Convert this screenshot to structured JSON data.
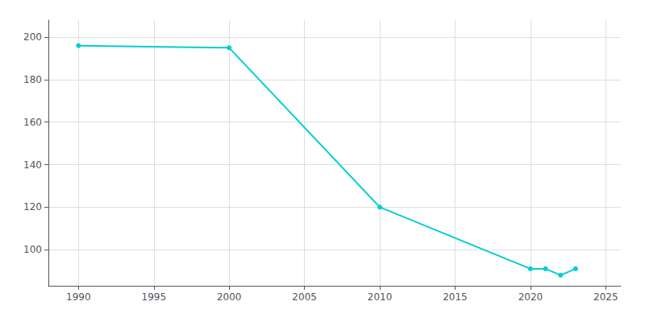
{
  "chart_data": {
    "type": "line",
    "x": [
      1990,
      2000,
      2010,
      2020,
      2021,
      2022,
      2023
    ],
    "values": [
      196,
      195,
      120,
      91,
      91,
      88,
      91
    ],
    "color": "#00CED1",
    "marker": "circle",
    "xlim": [
      1988,
      2026
    ],
    "ylim": [
      83,
      208
    ],
    "xticks": [
      1990,
      1995,
      2000,
      2005,
      2010,
      2015,
      2020,
      2025
    ],
    "yticks": [
      100,
      120,
      140,
      160,
      180,
      200
    ],
    "grid": true
  }
}
